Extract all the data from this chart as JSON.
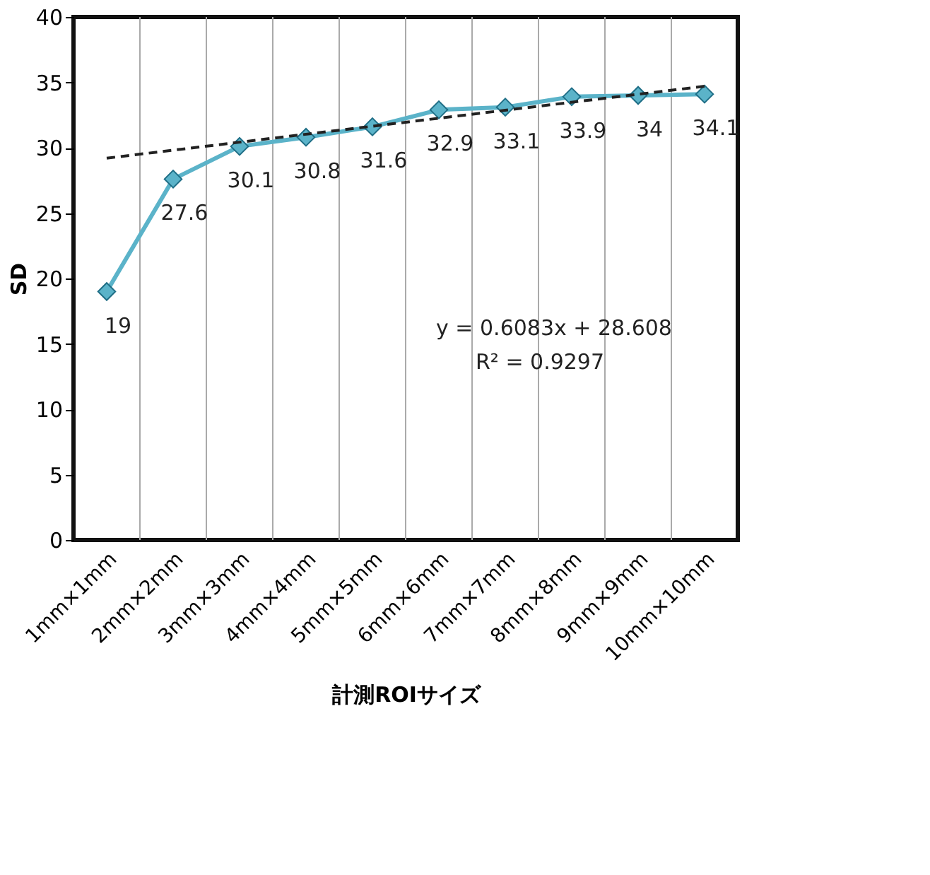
{
  "chart_data": {
    "type": "line",
    "xlabel": "計測ROIサイズ",
    "ylabel": "SD",
    "categories": [
      "1mm×1mm",
      "2mm×2mm",
      "3mm×3mm",
      "4mm×4mm",
      "5mm×5mm",
      "6mm×6mm",
      "7mm×7mm",
      "8mm×8mm",
      "9mm×9mm",
      "10mm×10mm"
    ],
    "series": [
      {
        "color": "#5bb3c9",
        "values": [
          19,
          27.6,
          30.1,
          30.8,
          31.6,
          32.9,
          33.1,
          33.9,
          34,
          34.1
        ],
        "value_labels": [
          "19",
          "27.6",
          "30.1",
          "30.8",
          "31.6",
          "32.9",
          "33.1",
          "33.9",
          "34",
          "34.1"
        ],
        "marker": "diamond",
        "line_style": "solid"
      },
      {
        "type": "line",
        "color": "#222222",
        "x": [
          "1mm×1mm",
          "10mm×10mm"
        ],
        "values": [
          29.2,
          34.7
        ],
        "marker": "none",
        "line_style": "dashed"
      }
    ],
    "ylim": [
      0,
      40
    ],
    "yticks": [
      0,
      5,
      10,
      15,
      20,
      25,
      30,
      35,
      40
    ],
    "grid": "x",
    "annotations": [
      "y = 0.6083x + 28.608",
      "R² = 0.9297"
    ]
  }
}
